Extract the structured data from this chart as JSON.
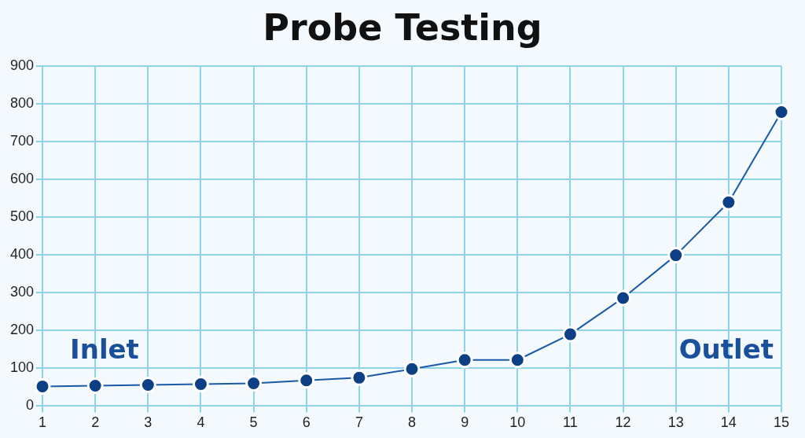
{
  "chart_data": {
    "type": "line",
    "title": "Probe Testing",
    "x": [
      1,
      2,
      3,
      4,
      5,
      6,
      7,
      8,
      9,
      10,
      11,
      12,
      13,
      14,
      15
    ],
    "series": [
      {
        "color": "#1a5aa8",
        "values": [
          52,
          54,
          56,
          58,
          60,
          68,
          75,
          98,
          122,
          122,
          190,
          286,
          399,
          539,
          778
        ]
      }
    ],
    "xlim": [
      1,
      15
    ],
    "xticks": [
      1,
      2,
      3,
      4,
      5,
      6,
      7,
      8,
      9,
      10,
      11,
      12,
      13,
      14,
      15
    ],
    "ylim": [
      0,
      900
    ],
    "yticks": [
      0,
      100,
      200,
      300,
      400,
      500,
      600,
      700,
      800,
      900
    ],
    "grid": true,
    "legend": false,
    "marker": "circle",
    "line_style": "solid",
    "annotations": [
      "Inlet",
      "Outlet"
    ]
  }
}
